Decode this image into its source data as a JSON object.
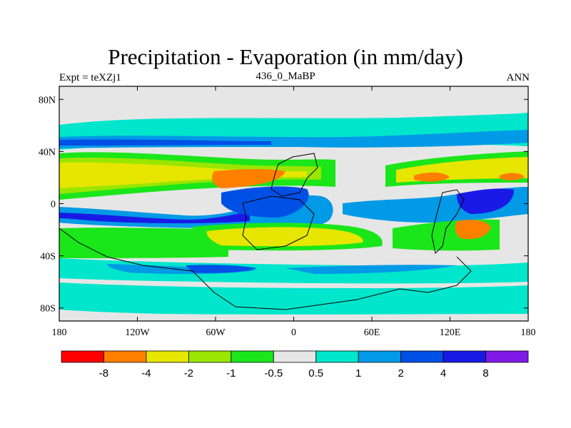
{
  "map": {
    "title": "Precipitation - Evaporation (in mm/day)",
    "left_label": "Expt = teXZj1",
    "center_label": "436_0_MaBP",
    "right_label": "ANN",
    "lon_ticks": [
      {
        "value": -180,
        "label": "180"
      },
      {
        "value": -120,
        "label": "120W"
      },
      {
        "value": -60,
        "label": "60W"
      },
      {
        "value": 0,
        "label": "0"
      },
      {
        "value": 60,
        "label": "60E"
      },
      {
        "value": 120,
        "label": "120E"
      },
      {
        "value": 180,
        "label": "180"
      }
    ],
    "lat_ticks": [
      {
        "value": 80,
        "label": "80N"
      },
      {
        "value": 40,
        "label": "40N"
      },
      {
        "value": 0,
        "label": "0"
      },
      {
        "value": -40,
        "label": "40S"
      },
      {
        "value": -80,
        "label": "80S"
      }
    ],
    "lon_range": [
      -180,
      180
    ],
    "lat_range": [
      -90,
      90
    ]
  },
  "colorbar": {
    "colors": [
      "#ff0000",
      "#ff7f00",
      "#e6e600",
      "#99e600",
      "#1ae61a",
      "#e6e6e6",
      "#00e6cc",
      "#009ae6",
      "#0050e6",
      "#1a1ae6",
      "#7f1ae6"
    ],
    "labels": [
      "-8",
      "-4",
      "-2",
      "-1",
      "-0.5",
      "0.5",
      "1",
      "2",
      "4",
      "8"
    ]
  },
  "colors": {
    "land_gray": "#e6e6e6",
    "cyan": "#00e6cc",
    "light_blue": "#009ae6",
    "blue": "#0050e6",
    "dark_blue": "#1a1ae6",
    "green": "#1ae61a",
    "yellow_green": "#99e600",
    "yellow": "#e6e600",
    "orange": "#ff7f00"
  }
}
